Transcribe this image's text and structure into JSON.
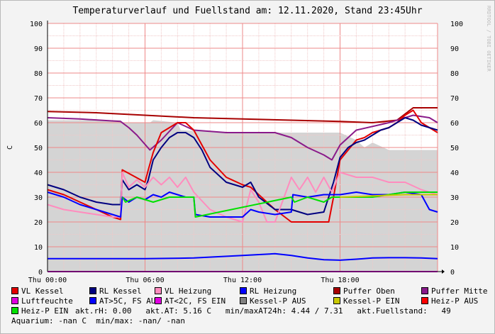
{
  "title": "Temperaturverlauf und Fuellstand am: 12.11.2020, Stand 23:45Uhr",
  "side_tag": "RRDTOOL / TOBI OETIKER",
  "info": {
    "line1": "akt.rH: 0.00   akt.AT: 5.16 C   min/maxAT24h: 4.44 / 7.31   akt.Fuellstand:   49",
    "line2": "Aquarium: -nan C  min/max: -nan/ -nan"
  },
  "legend": [
    {
      "label": "VL Kessel",
      "color": "#e30000"
    },
    {
      "label": "RL Kessel",
      "color": "#000080"
    },
    {
      "label": "VL Heizung",
      "color": "#ff8cbe"
    },
    {
      "label": "RL Heizung",
      "color": "#0000ff"
    },
    {
      "label": "Puffer Oben",
      "color": "#a80000"
    },
    {
      "label": "Puffer Mitte",
      "color": "#8a1a8a"
    },
    {
      "label": "Luftfeuchte",
      "color": "#e000e0"
    },
    {
      "label": "AT>5C, FS AUS",
      "color": "#0000ff"
    },
    {
      "label": "AT<2C, FS EIN",
      "color": "#e000e0"
    },
    {
      "label": "Kessel-P AUS",
      "color": "#808080"
    },
    {
      "label": "Kessel-P EIN",
      "color": "#c8c800"
    },
    {
      "label": "Heiz-P AUS",
      "color": "#ff0000"
    },
    {
      "label": "Heiz-P EIN",
      "color": "#00e000"
    }
  ],
  "chart_data": {
    "type": "line",
    "ylabel": "C",
    "ylim": [
      0,
      100
    ],
    "yticks": [
      "0",
      "10",
      "20",
      "30",
      "40",
      "50",
      "60",
      "70",
      "80",
      "90",
      "100"
    ],
    "xlim_hours": [
      0,
      24
    ],
    "xticks": [
      {
        "hour": 0,
        "label": "Thu 00:00"
      },
      {
        "hour": 6,
        "label": "Thu 06:00"
      },
      {
        "hour": 12,
        "label": "Thu 12:00"
      },
      {
        "hour": 18,
        "label": "Thu 18:00"
      }
    ],
    "grid": true,
    "series": [
      {
        "name": "Fuellstand",
        "kind": "area",
        "color": "#d4d4d4",
        "x": [
          0,
          4.5,
          4.6,
          6.3,
          6.5,
          8.0,
          8.2,
          11.0,
          15.0,
          18.0,
          19.0,
          19.5,
          20.0,
          21.0,
          22.0,
          24.0
        ],
        "y": [
          61,
          61,
          60,
          60,
          61,
          60,
          57,
          56,
          56,
          56,
          53,
          50,
          52,
          49,
          49,
          49
        ]
      },
      {
        "name": "Puffer Oben",
        "color": "#a80000",
        "x": [
          0,
          3,
          6,
          9,
          12,
          15,
          18,
          20,
          21.5,
          22.5,
          24
        ],
        "y": [
          64.5,
          64,
          63,
          62,
          61.5,
          61,
          60.5,
          60,
          61,
          66,
          66
        ]
      },
      {
        "name": "Puffer Mitte",
        "color": "#8a1a8a",
        "x": [
          0,
          2,
          4.5,
          5,
          5.5,
          6.3,
          7,
          8,
          9,
          11,
          14,
          15,
          16,
          17,
          17.5,
          18,
          19,
          21,
          22.5,
          23.5,
          24
        ],
        "y": [
          62,
          61.5,
          60.5,
          58,
          55,
          49,
          53,
          60,
          57,
          56,
          56,
          54,
          50,
          47,
          45,
          51,
          57,
          60,
          63,
          62,
          60
        ]
      },
      {
        "name": "VL Kessel",
        "color": "#e30000",
        "x": [
          0,
          1,
          2,
          3,
          4,
          4.5,
          4.6,
          6.0,
          6.2,
          6.5,
          7,
          7.5,
          8,
          8.5,
          9.0,
          9.5,
          10,
          11,
          12,
          12.5,
          14,
          15,
          16,
          17,
          17.3,
          17.6,
          18,
          18.5,
          19,
          19.5,
          20,
          20.5,
          21,
          21.5,
          22,
          22.5,
          23,
          24
        ],
        "y": [
          33,
          31,
          28,
          25,
          22,
          21,
          41,
          36,
          41,
          48,
          56,
          58,
          60,
          60,
          57,
          51,
          45,
          38,
          35,
          34,
          25,
          20,
          20,
          20,
          20,
          30,
          45,
          49,
          53,
          54,
          56,
          57,
          58,
          60,
          63,
          65,
          60,
          56
        ]
      },
      {
        "name": "RL Kessel",
        "color": "#000080",
        "x": [
          0,
          1,
          2,
          3,
          4,
          4.5,
          4.6,
          5,
          5.5,
          6.0,
          6.2,
          6.5,
          7,
          7.5,
          8,
          8.5,
          9,
          9.5,
          10,
          11,
          12,
          12.5,
          13,
          14,
          15,
          16,
          17,
          17.6,
          18,
          18.5,
          19,
          19.5,
          20,
          20.5,
          21,
          21.5,
          22,
          22.5,
          23,
          24
        ],
        "y": [
          35,
          33,
          30,
          28,
          27,
          27,
          37,
          33,
          35,
          33,
          37,
          45,
          50,
          54,
          56,
          56,
          54,
          49,
          42,
          36,
          34,
          36,
          30,
          25,
          25,
          23,
          24,
          36,
          46,
          50,
          52,
          53,
          55,
          57,
          58,
          60,
          62,
          61,
          59,
          57
        ]
      },
      {
        "name": "VL Heizung",
        "color": "#ff8cbe",
        "x": [
          0,
          1,
          2,
          3,
          4,
          4.5,
          4.6,
          5,
          5.5,
          6,
          6.5,
          7,
          7.5,
          8,
          8.5,
          9,
          10,
          11,
          12,
          12.5,
          13,
          13.5,
          14,
          15,
          15.5,
          16,
          16.5,
          17,
          17.5,
          18,
          19,
          20,
          21,
          22,
          23,
          24
        ],
        "y": [
          27,
          25,
          24,
          23,
          22,
          22,
          40,
          34,
          37,
          34,
          38,
          35,
          38,
          34,
          38,
          32,
          25,
          22,
          20,
          33,
          28,
          20,
          20,
          38,
          33,
          38,
          32,
          38,
          32,
          40,
          38,
          38,
          36,
          36,
          33,
          31
        ]
      },
      {
        "name": "RL Heizung",
        "color": "#0000ff",
        "x": [
          0,
          1,
          2,
          3,
          4,
          4.5,
          4.6,
          5,
          5.5,
          6,
          6.5,
          7,
          7.5,
          8,
          8.5,
          9,
          9.1,
          10,
          11,
          12,
          12.5,
          13,
          14,
          15,
          15.1,
          16,
          17,
          18,
          19,
          20,
          21,
          22,
          23,
          23.5,
          24
        ],
        "y": [
          32,
          30,
          27,
          25,
          23,
          22,
          30,
          28,
          30,
          29,
          31,
          30,
          32,
          31,
          30,
          30,
          23,
          22,
          22,
          22,
          25,
          24,
          23,
          24,
          31,
          30,
          31,
          31,
          32,
          31,
          31,
          32,
          31,
          25,
          24
        ]
      },
      {
        "name": "Heiz-P EIN",
        "color": "#00e000",
        "x": [
          4.6,
          4.8,
          5.5,
          6.5,
          7.5,
          8,
          9.0,
          9.1,
          15.0,
          15.2,
          16,
          17,
          17.5,
          18,
          19,
          20,
          21,
          22,
          23,
          24
        ],
        "y": [
          30,
          28,
          30,
          28,
          30,
          30,
          30,
          22,
          30,
          28,
          30,
          28,
          30,
          30,
          30,
          30,
          31,
          32,
          32,
          32
        ]
      },
      {
        "name": "Kessel-P EIN",
        "color": "#c8c800",
        "x": [
          18,
          20,
          22,
          24
        ],
        "y": [
          30,
          30.5,
          31,
          31
        ]
      },
      {
        "name": "AT>5C, FS AUS",
        "color": "#0000ff",
        "x": [
          0,
          3,
          6,
          9,
          12,
          14,
          15,
          16,
          17,
          18,
          19,
          20,
          21,
          22,
          23,
          24
        ],
        "y": [
          5.2,
          5.2,
          5.2,
          5.5,
          6.5,
          7.2,
          6.5,
          5.5,
          4.8,
          4.6,
          5.0,
          5.5,
          5.6,
          5.6,
          5.5,
          5.2
        ]
      },
      {
        "name": "Luftfeuchte",
        "color": "#e000e0",
        "x": [
          0,
          24
        ],
        "y": [
          0,
          0
        ]
      }
    ]
  }
}
